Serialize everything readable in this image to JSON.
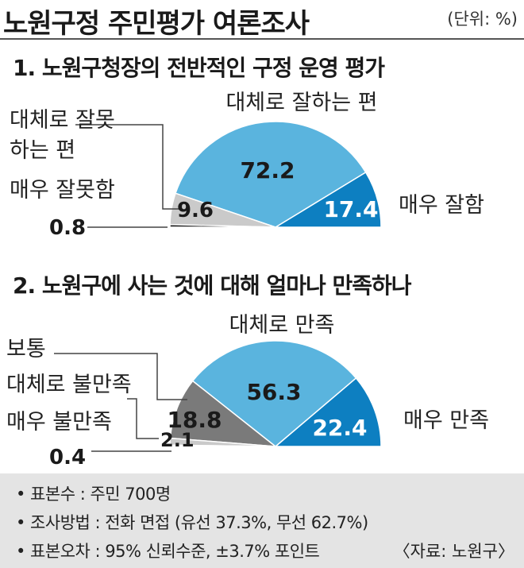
{
  "title": "노원구정 주민평가 여론조사",
  "unit": "(단위: %)",
  "chart_data": [
    {
      "type": "pie",
      "title": "1. 노원구청장의 전반적인 구정 운영 평가",
      "categories": [
        "매우 잘함",
        "대체로 잘하는 편",
        "대체로 잘못하는 편",
        "매우 잘못함"
      ],
      "values": [
        17.4,
        72.2,
        9.6,
        0.8
      ],
      "value_labels": [
        "17.4",
        "72.2",
        "9.6",
        "0.8"
      ],
      "labels": {
        "very_good": "매우 잘함",
        "mostly_good": "대체로 잘하는 편",
        "mostly_bad_line1": "대체로 잘못",
        "mostly_bad_line2": "하는 편",
        "very_bad": "매우 잘못함"
      },
      "colors": [
        "#0d7fc1",
        "#5ab4de",
        "#cacaca",
        "#222222"
      ]
    },
    {
      "type": "pie",
      "title": "2. 노원구에 사는 것에 대해 얼마나 만족하나",
      "categories": [
        "매우 만족",
        "대체로 만족",
        "보통",
        "대체로 불만족",
        "매우 불만족"
      ],
      "values": [
        22.4,
        56.3,
        18.8,
        2.1,
        0.4
      ],
      "value_labels": [
        "22.4",
        "56.3",
        "18.8",
        "2.1",
        "0.4"
      ],
      "labels": {
        "very_satisfied": "매우 만족",
        "mostly_satisfied": "대체로 만족",
        "neutral": "보통",
        "mostly_unsatisfied": "대체로 불만족",
        "very_unsatisfied": "매우 불만족"
      },
      "colors": [
        "#0d7fc1",
        "#5ab4de",
        "#7a7a7a",
        "#cacaca",
        "#222222"
      ]
    }
  ],
  "notes": [
    "• 표본수 : 주민 700명",
    "• 조사방법 : 전화 면접 (유선 37.3%, 무선 62.7%)",
    "• 표본오차 : 95% 신뢰수준, ±3.7% 포인트"
  ],
  "source": "〈자료: 노원구〉"
}
